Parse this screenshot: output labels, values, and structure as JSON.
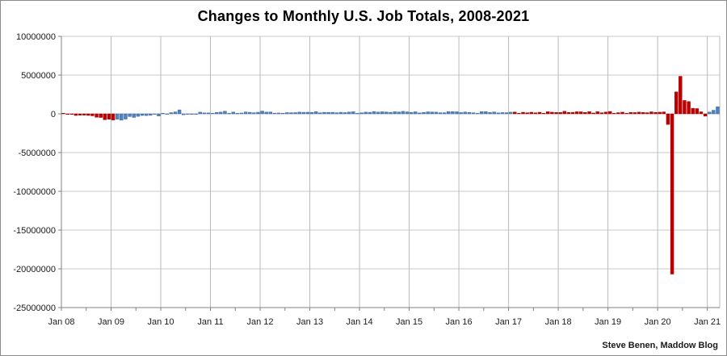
{
  "title": "Changes to Monthly U.S. Job Totals, 2008-2021",
  "credit": "Steve Benen, Maddow Blog",
  "chart_data": {
    "type": "bar",
    "title": "Changes to Monthly U.S. Job Totals, 2008-2021",
    "xlabel": "",
    "ylabel": "",
    "unit": "jobs (monthly change, thousands)",
    "ylim": [
      -25000000,
      10000000
    ],
    "grid": true,
    "legend": false,
    "y_tick_labels": [
      "10000000",
      "5000000",
      "0",
      "-5000000",
      "-10000000",
      "-15000000",
      "-20000000",
      "-25000000"
    ],
    "y_ticks_millions": [
      10,
      5,
      0,
      -5,
      -10,
      -15,
      -20,
      -25
    ],
    "x_tick_labels": [
      "Jan 08",
      "Jan 09",
      "Jan 10",
      "Jan 11",
      "Jan 12",
      "Jan 13",
      "Jan 14",
      "Jan 15",
      "Jan 16",
      "Jan 17",
      "Jan 18",
      "Jan 19",
      "Jan 20",
      "Jan 21"
    ],
    "x_minor_tick_every_months": 6,
    "start_month": "Jan 2008",
    "end_month": "Mar 2021",
    "colors": {
      "R": "#c00000",
      "D": "#4f81bd",
      "R_edge": "#8f0000",
      "D_edge": "#3a639b"
    },
    "party_ranges": [
      {
        "start": 0,
        "end": 12,
        "party": "R"
      },
      {
        "start": 13,
        "end": 108,
        "party": "D"
      },
      {
        "start": 109,
        "end": 155,
        "party": "R"
      },
      {
        "start": 156,
        "end": 158,
        "party": "D"
      }
    ],
    "values_thousands": [
      15,
      -86,
      -80,
      -214,
      -182,
      -172,
      -210,
      -259,
      -452,
      -474,
      -765,
      -697,
      -798,
      -701,
      -826,
      -684,
      -354,
      -467,
      -327,
      -216,
      -227,
      -198,
      -6,
      -283,
      18,
      -50,
      156,
      251,
      516,
      -122,
      -61,
      -42,
      -52,
      220,
      121,
      120,
      42,
      188,
      225,
      346,
      73,
      235,
      70,
      107,
      246,
      202,
      146,
      207,
      360,
      226,
      243,
      96,
      110,
      88,
      160,
      150,
      161,
      225,
      203,
      214,
      197,
      280,
      141,
      203,
      199,
      201,
      149,
      202,
      164,
      237,
      274,
      84,
      144,
      222,
      203,
      304,
      229,
      267,
      243,
      203,
      271,
      243,
      321,
      256,
      201,
      266,
      119,
      187,
      260,
      245,
      223,
      150,
      149,
      295,
      280,
      271,
      168,
      233,
      186,
      144,
      43,
      297,
      291,
      176,
      249,
      124,
      164,
      155,
      216,
      232,
      50,
      207,
      145,
      210,
      139,
      208,
      38,
      271,
      216,
      175,
      176,
      330,
      182,
      196,
      270,
      262,
      178,
      282,
      108,
      277,
      145,
      227,
      312,
      56,
      153,
      216,
      62,
      178,
      166,
      219,
      184,
      152,
      261,
      184,
      214,
      251,
      -1373,
      -20679,
      2833,
      4846,
      1726,
      1583,
      716,
      680,
      264,
      -306,
      233,
      468,
      916
    ]
  }
}
